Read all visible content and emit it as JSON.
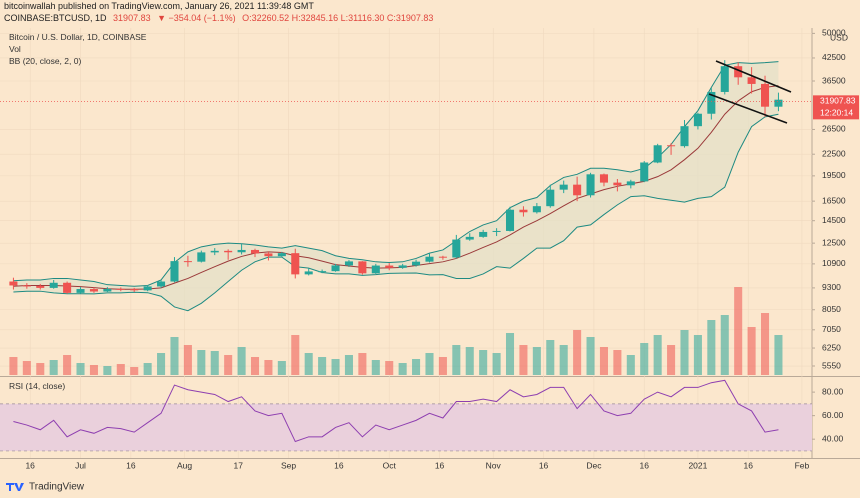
{
  "header": {
    "publisher": "bitcoinwallah published on TradingView.com, January 26, 2021 11:39:48 GMT",
    "symbol": "COINBASE:BTCUSD, 1D",
    "last": "31907.83",
    "change": "▼ −354.04 (−1.1%)",
    "ohlc": "O:32260.52 H:32845.16 L:31116.30 C:31907.83"
  },
  "chart_data": {
    "type": "candlestick",
    "title": "Bitcoin / U.S. Dollar, 1D, COINBASE",
    "volume_label": "Vol",
    "bb_label": "BB (20, close, 2, 0)",
    "rsi_label": "RSI (14, close)",
    "currency": "USD",
    "x": [
      -204,
      -200,
      -196,
      -192,
      -188,
      -184,
      -180,
      -176,
      -172,
      -168,
      -164,
      -160,
      -156,
      -152,
      -148,
      -144,
      -140,
      -136,
      -132,
      -128,
      -124,
      -120,
      -116,
      -112,
      -108,
      -104,
      -100,
      -96,
      -92,
      -88,
      -84,
      -80,
      -76,
      -72,
      -68,
      -64,
      -60,
      -56,
      -52,
      -48,
      -44,
      -40,
      -36,
      -32,
      -28,
      -24,
      -20,
      -16,
      -12,
      -8,
      -4,
      0,
      4,
      8,
      12,
      16,
      20,
      24
    ],
    "open": [
      9700,
      9450,
      9420,
      9300,
      9620,
      9000,
      9230,
      9080,
      9240,
      9230,
      9150,
      9390,
      9700,
      11100,
      11060,
      11760,
      11880,
      11770,
      11950,
      11680,
      11470,
      11700,
      10170,
      10370,
      10390,
      10790,
      11080,
      10240,
      10780,
      10620,
      10790,
      11060,
      11430,
      11370,
      12800,
      13030,
      13460,
      13550,
      15590,
      15330,
      15960,
      17800,
      18400,
      17150,
      19700,
      18650,
      18320,
      18800,
      21300,
      23870,
      23730,
      27080,
      29400,
      33950,
      40250,
      37400,
      35800,
      30800
    ],
    "high": [
      9950,
      9600,
      9550,
      9800,
      9700,
      9350,
      9320,
      9350,
      9330,
      9300,
      9480,
      9800,
      11400,
      11500,
      11900,
      12100,
      12000,
      12450,
      12050,
      11800,
      11800,
      12050,
      10600,
      10500,
      10900,
      11180,
      11100,
      10900,
      10960,
      10900,
      11200,
      11700,
      11500,
      13200,
      13350,
      13650,
      13800,
      15900,
      15950,
      16300,
      18400,
      18900,
      19400,
      19900,
      19800,
      19100,
      19000,
      21500,
      24100,
      24200,
      28200,
      29600,
      34800,
      41900,
      41300,
      40000,
      37800,
      33800
    ],
    "low": [
      9200,
      9250,
      9200,
      9250,
      8950,
      8950,
      9000,
      9050,
      9100,
      9050,
      9100,
      9300,
      9650,
      10700,
      11000,
      11550,
      11200,
      11600,
      11400,
      11150,
      11400,
      9900,
      10100,
      10250,
      10350,
      10680,
      10150,
      10200,
      10450,
      10550,
      10700,
      11000,
      11200,
      11300,
      12700,
      12950,
      13100,
      13500,
      14900,
      15200,
      15800,
      17400,
      16500,
      16900,
      18200,
      17600,
      17950,
      18700,
      21200,
      22400,
      23500,
      26500,
      28300,
      33400,
      35600,
      33600,
      28800,
      29900
    ],
    "close": [
      9450,
      9420,
      9300,
      9620,
      9000,
      9230,
      9080,
      9240,
      9230,
      9150,
      9390,
      9700,
      11100,
      11060,
      11760,
      11880,
      11770,
      11950,
      11680,
      11470,
      11700,
      10170,
      10370,
      10390,
      10790,
      11080,
      10240,
      10780,
      10620,
      10790,
      11060,
      11430,
      11370,
      12800,
      13030,
      13460,
      13550,
      15590,
      15330,
      15960,
      17800,
      18400,
      17150,
      19700,
      18650,
      18320,
      18800,
      21300,
      23870,
      23730,
      27080,
      29400,
      33950,
      40250,
      37400,
      35800,
      30800,
      32260
    ],
    "volume": [
      18,
      14,
      12,
      15,
      20,
      12,
      10,
      9,
      11,
      8,
      12,
      22,
      38,
      30,
      25,
      24,
      20,
      28,
      18,
      15,
      14,
      40,
      22,
      18,
      16,
      20,
      22,
      15,
      14,
      12,
      16,
      22,
      18,
      30,
      28,
      25,
      22,
      42,
      30,
      28,
      35,
      30,
      45,
      38,
      28,
      25,
      20,
      32,
      40,
      30,
      45,
      40,
      55,
      60,
      88,
      48,
      62,
      40
    ],
    "bb_upper": [
      9750,
      9800,
      9800,
      9900,
      9900,
      9800,
      9700,
      9500,
      9450,
      9400,
      9450,
      9800,
      11000,
      11800,
      12200,
      12400,
      12500,
      12450,
      12350,
      12200,
      12100,
      12300,
      12100,
      11900,
      11500,
      11300,
      11200,
      11050,
      11000,
      11050,
      11300,
      11700,
      11950,
      12700,
      13500,
      14100,
      14500,
      15800,
      16500,
      16900,
      18300,
      19300,
      19700,
      20500,
      20500,
      20300,
      20000,
      20500,
      22000,
      24000,
      27000,
      30000,
      35000,
      40500,
      41200,
      41000,
      41200,
      41500
    ],
    "bb_middle": [
      9400,
      9450,
      9450,
      9450,
      9420,
      9380,
      9320,
      9250,
      9220,
      9220,
      9230,
      9300,
      9600,
      9900,
      10300,
      10700,
      11100,
      11450,
      11700,
      11800,
      11750,
      11500,
      11350,
      11100,
      10850,
      10750,
      10650,
      10600,
      10620,
      10650,
      10780,
      10920,
      11050,
      11300,
      11700,
      12150,
      12600,
      13200,
      13900,
      14500,
      15200,
      16000,
      16800,
      17300,
      17800,
      18200,
      18500,
      18800,
      19400,
      20300,
      21700,
      23400,
      26000,
      29300,
      32000,
      34000,
      35000,
      35400
    ],
    "bb_lower": [
      9050,
      9100,
      9100,
      9000,
      8950,
      8950,
      8940,
      9000,
      9000,
      9040,
      9010,
      8800,
      8200,
      8000,
      8400,
      9000,
      9700,
      10450,
      11050,
      11400,
      11400,
      10700,
      10600,
      10300,
      10200,
      10200,
      10100,
      10150,
      10240,
      10250,
      10260,
      10140,
      10150,
      9900,
      9900,
      10200,
      10700,
      10600,
      11300,
      12100,
      12100,
      12700,
      13900,
      14100,
      15100,
      16100,
      17000,
      17100,
      16800,
      16600,
      16400,
      16800,
      17000,
      18100,
      22800,
      27000,
      28800,
      29300
    ],
    "rsi": [
      55,
      52,
      48,
      56,
      42,
      48,
      45,
      50,
      49,
      46,
      54,
      62,
      86,
      82,
      80,
      78,
      72,
      76,
      64,
      60,
      62,
      38,
      42,
      42,
      50,
      54,
      42,
      52,
      48,
      52,
      56,
      62,
      58,
      72,
      72,
      74,
      72,
      82,
      76,
      78,
      84,
      84,
      66,
      78,
      64,
      60,
      62,
      74,
      80,
      76,
      84,
      84,
      88,
      90,
      70,
      64,
      46,
      48
    ],
    "log_scale": true,
    "grid": true,
    "ylim": [
      5230,
      51810
    ],
    "yticks": [
      50000,
      42500,
      36500,
      26500,
      22500,
      19500,
      16500,
      14500,
      12500,
      10900,
      9300,
      8050,
      7050,
      6250,
      5550
    ],
    "xlim": [
      -208,
      34
    ],
    "xticks": [
      {
        "value": -199,
        "label": "16"
      },
      {
        "value": -184,
        "label": "Jul"
      },
      {
        "value": -169,
        "label": "16"
      },
      {
        "value": -153,
        "label": "Aug"
      },
      {
        "value": -137,
        "label": "17"
      },
      {
        "value": -122,
        "label": "Sep"
      },
      {
        "value": -107,
        "label": "16"
      },
      {
        "value": -92,
        "label": "Oct"
      },
      {
        "value": -77,
        "label": "16"
      },
      {
        "value": -61,
        "label": "Nov"
      },
      {
        "value": -46,
        "label": "16"
      },
      {
        "value": -31,
        "label": "Dec"
      },
      {
        "value": -16,
        "label": "16"
      },
      {
        "value": 0,
        "label": "2021"
      },
      {
        "value": 15,
        "label": "16"
      },
      {
        "value": 31,
        "label": "Feb"
      }
    ],
    "last_price": 31907.83,
    "countdown": "12:20:14",
    "volume_ylim": [
      0,
      100
    ],
    "rsi_ylim": [
      24,
      92
    ],
    "rsi_yticks": [
      {
        "value": 80,
        "label": "80.00"
      },
      {
        "value": 60,
        "label": "60.00"
      },
      {
        "value": 40,
        "label": "40.00"
      }
    ],
    "rsi_band": [
      30,
      70
    ],
    "up_color": "#26a69a",
    "down_color": "#ef5350",
    "bb_color": "#1d8a82",
    "bb_middle_color": "#9b3a3a",
    "bb_fill": "#e3e0c8",
    "rsi_color": "#8e3fb0",
    "rsi_fill": "#ead0dc"
  },
  "footer": {
    "brand": "TradingView"
  }
}
